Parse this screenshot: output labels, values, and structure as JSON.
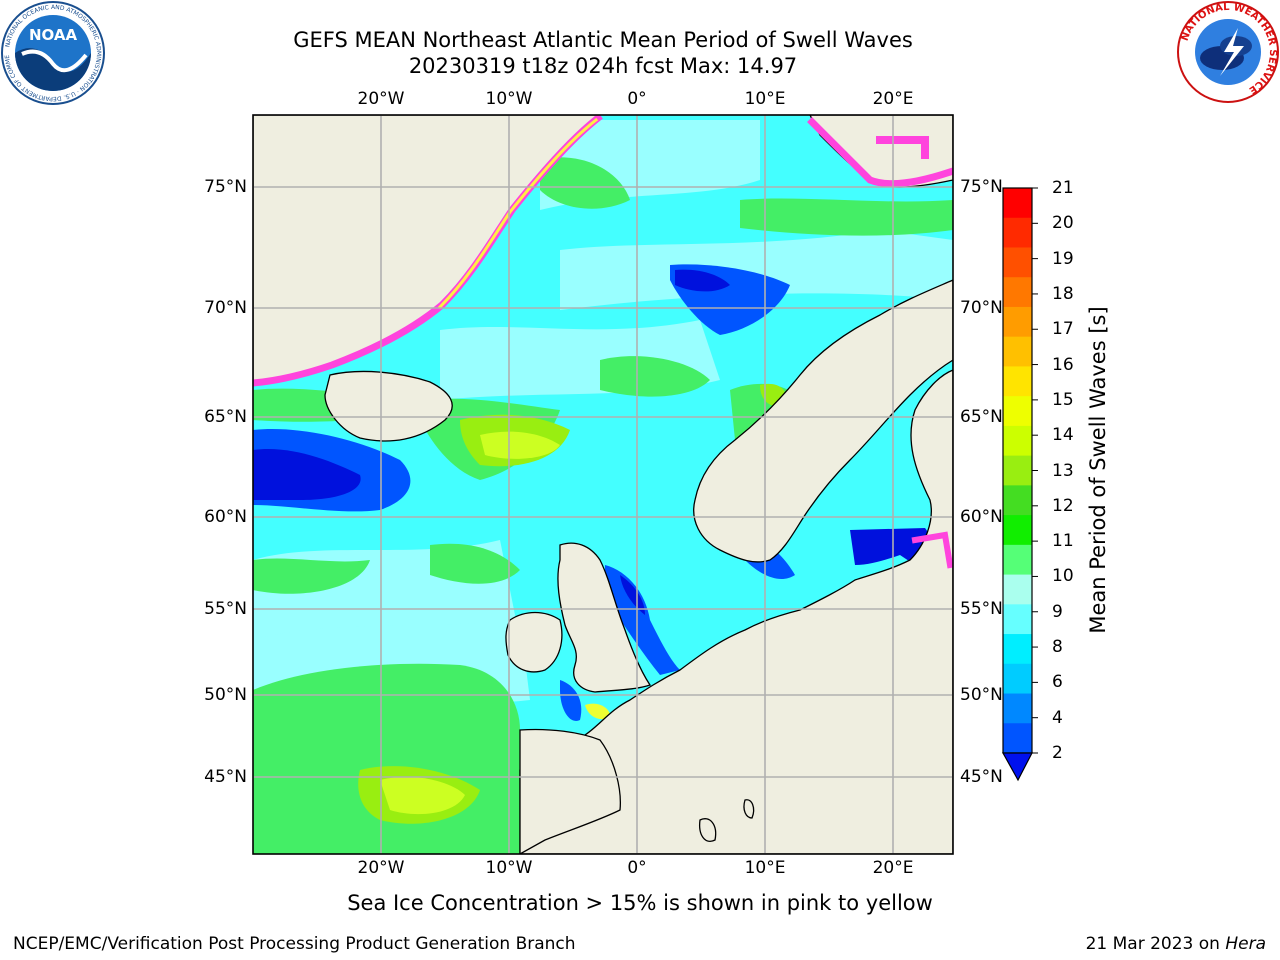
{
  "title": {
    "line1": "GEFS MEAN Northeast Atlantic Mean Period of Swell Waves",
    "line2": "20230319 t18z 024h fcst   Max: 14.97"
  },
  "map": {
    "lon_labels": [
      "20°W",
      "10°W",
      "0°",
      "10°E",
      "20°E"
    ],
    "lat_labels": [
      "75°N",
      "70°N",
      "65°N",
      "60°N",
      "55°N",
      "50°N",
      "45°N"
    ],
    "colors": {
      "land": "#efeee0",
      "ocean_cyan": "#44ffff",
      "ocean_light": "#99ffff",
      "green": "#44ee66",
      "bright_green": "#22dd11",
      "yellow_green": "#ccff22",
      "yellow": "#eeff33",
      "blue": "#0055ff",
      "dark_blue": "#0011dd",
      "ice_pink": "#ff44dd",
      "ice_yellow": "#ffee44",
      "grid": "#b0b0b0"
    }
  },
  "colorbar": {
    "title": "Mean Period of Swell Waves [s]",
    "ticks": [
      "21",
      "20",
      "19",
      "18",
      "17",
      "16",
      "15",
      "14",
      "13",
      "12",
      "11",
      "10",
      "9",
      "8",
      "6",
      "4",
      "2"
    ],
    "colors_top_to_bottom": [
      "#ff0000",
      "#ff2a00",
      "#ff5000",
      "#ff7800",
      "#ff9c00",
      "#ffc000",
      "#ffe400",
      "#eeff00",
      "#ccff00",
      "#99ee11",
      "#44dd22",
      "#11ee00",
      "#55ff77",
      "#aaffee",
      "#66ffff",
      "#00eeff",
      "#00ccff",
      "#0088ff",
      "#0055ff"
    ],
    "extend_color": "#0011ee"
  },
  "footnote": "Sea Ice Concentration > 15% is shown in pink to yellow",
  "credits": {
    "left": "NCEP/EMC/Verification Post Processing Product Generation Branch",
    "right_date": "21 Mar 2023 on ",
    "right_host": "Hera"
  },
  "logos": {
    "noaa_text": "NOAA",
    "noaa_ring_text": "NATIONAL OCEANIC AND ATMOSPHERIC ADMINISTRATION · U.S. DEPARTMENT OF COMMERCE",
    "nws_ring_text": "NATIONAL WEATHER SERVICE"
  }
}
